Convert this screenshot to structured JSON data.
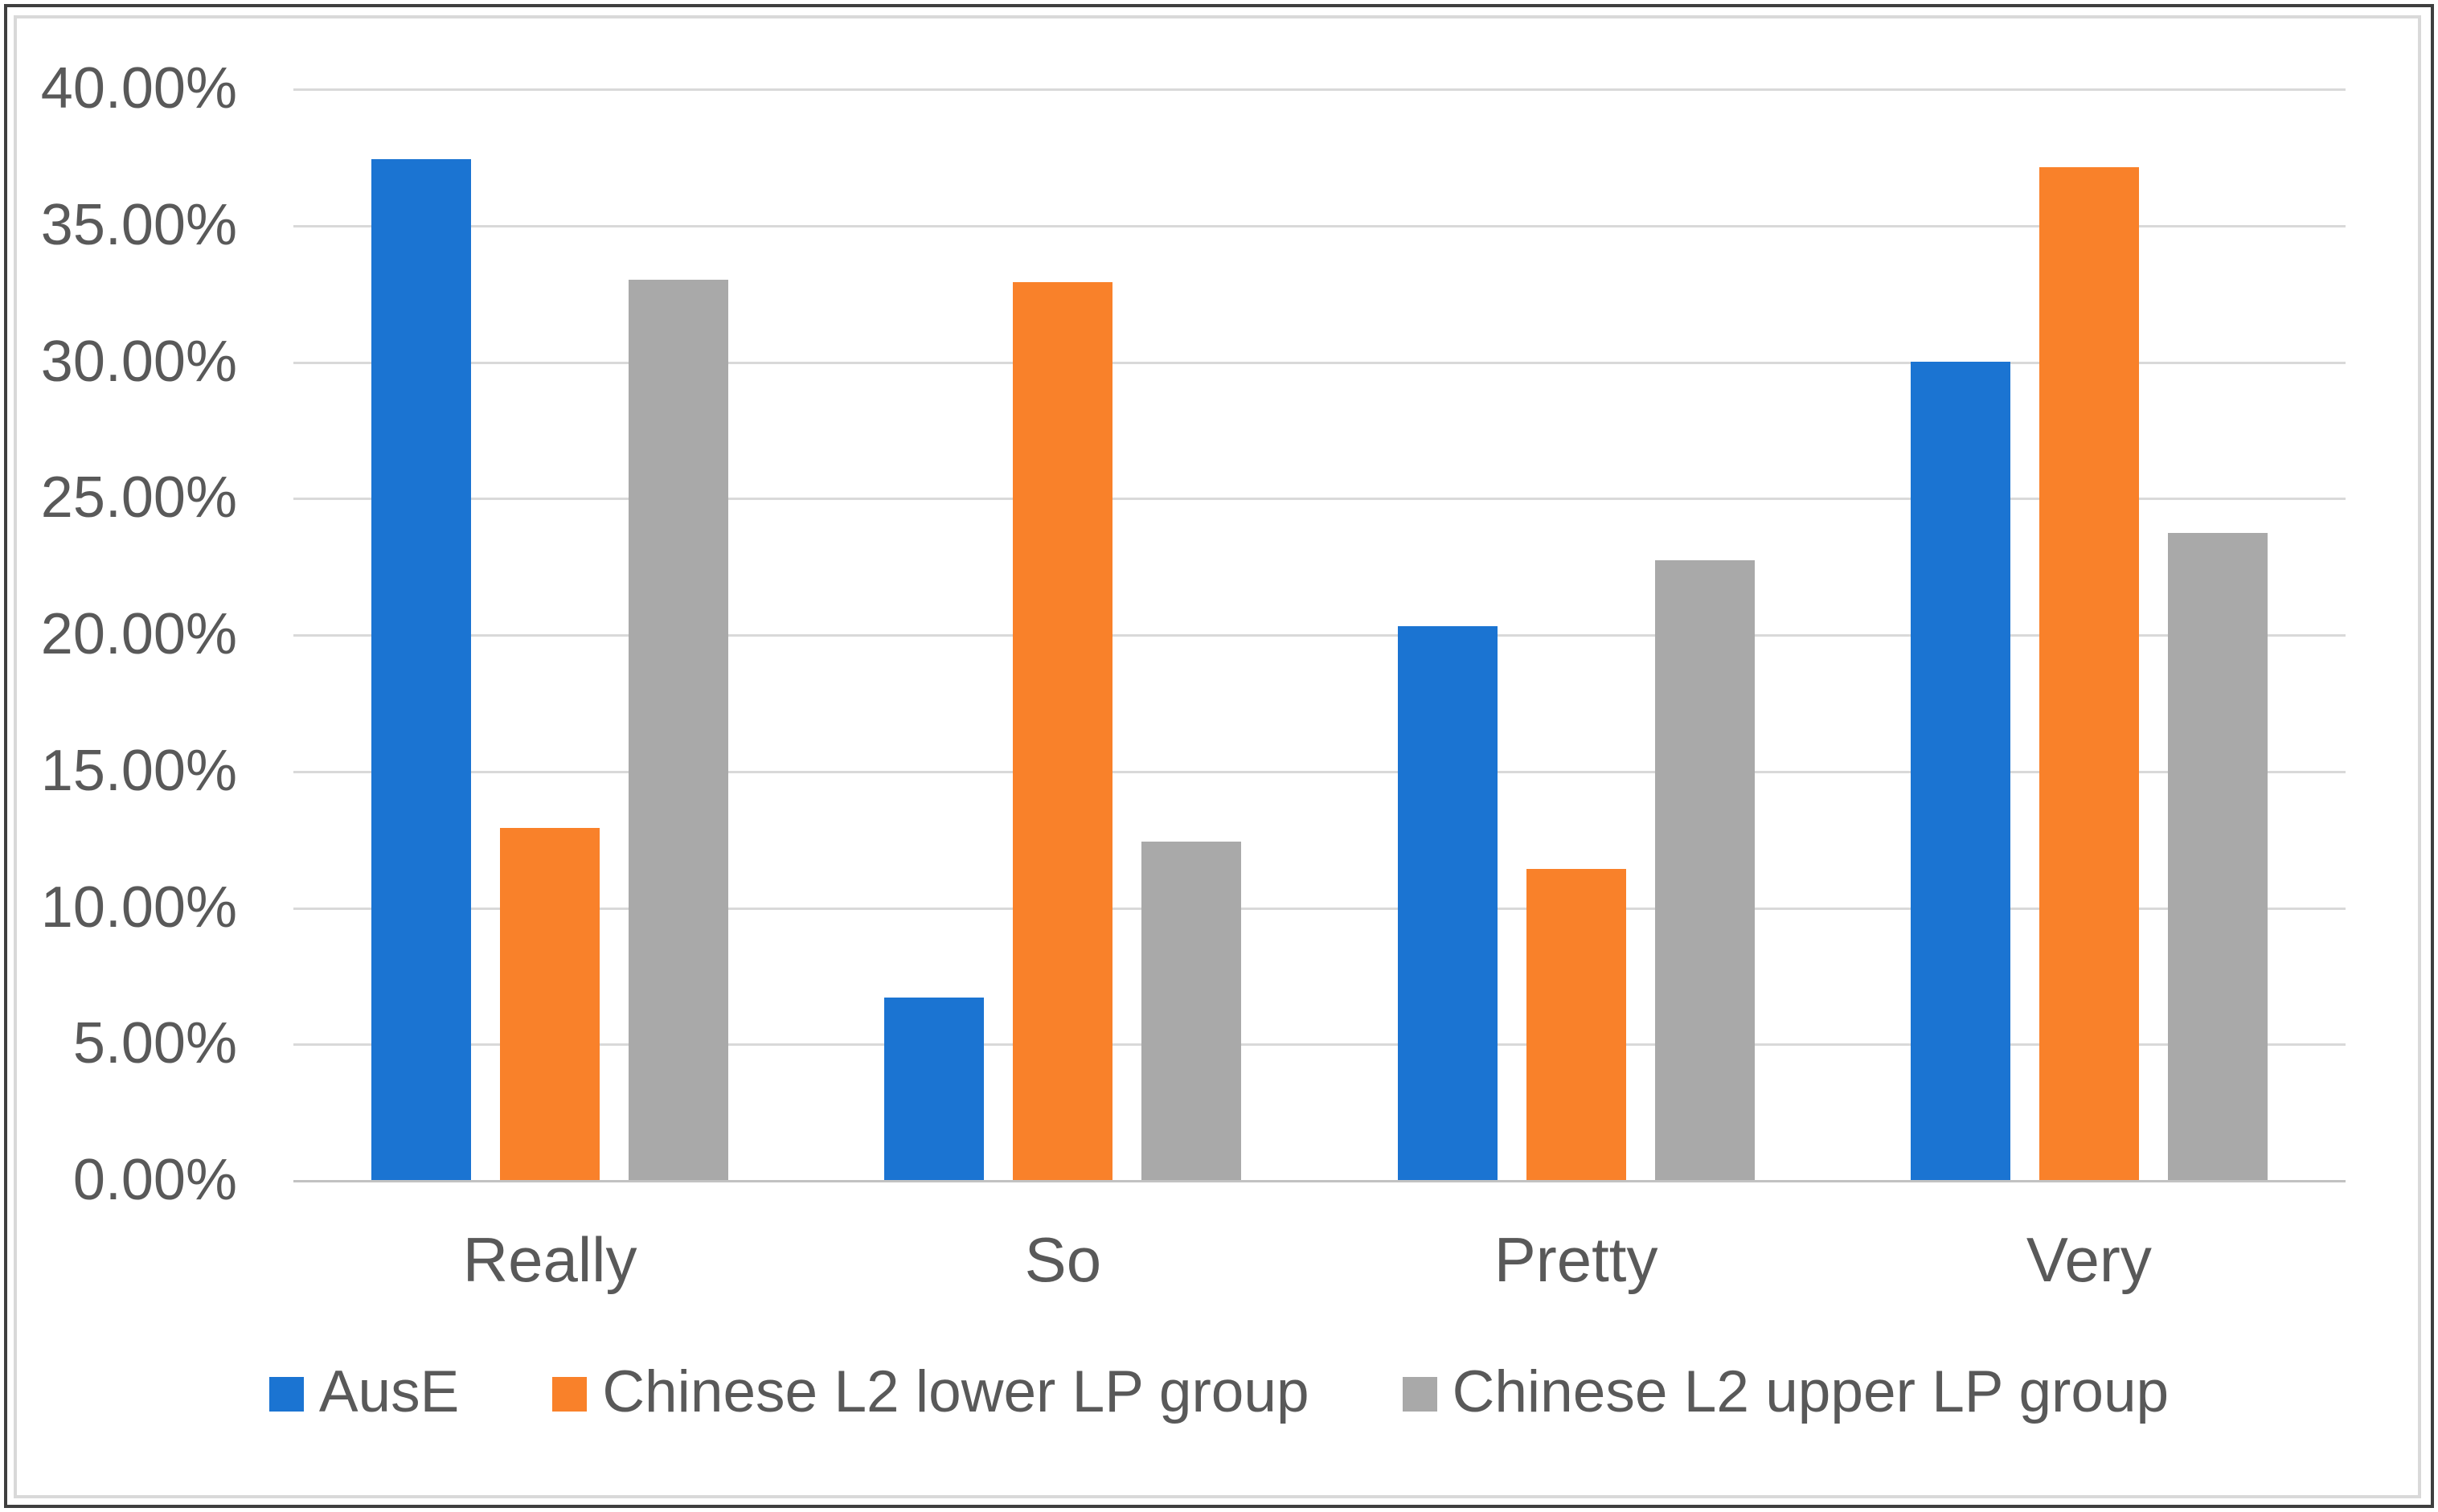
{
  "chart_data": {
    "type": "bar",
    "title": "",
    "xlabel": "",
    "ylabel": "",
    "categories": [
      "Really",
      "So",
      "Pretty",
      "Very"
    ],
    "series": [
      {
        "name": "AusE",
        "color": "#1b74d2",
        "values": [
          37.4,
          6.7,
          20.3,
          30.0
        ]
      },
      {
        "name": "Chinese L2 lower LP group",
        "color": "#f9812a",
        "values": [
          12.9,
          32.9,
          11.4,
          37.1
        ]
      },
      {
        "name": "Chinese L2 upper LP group",
        "color": "#a9a9a9",
        "values": [
          33.0,
          12.4,
          22.7,
          23.7
        ]
      }
    ],
    "ylim": [
      0,
      40
    ],
    "ytick_step": 5,
    "ytick_labels": [
      "40.00%",
      "35.00%",
      "30.00%",
      "25.00%",
      "20.00%",
      "15.00%",
      "10.00%",
      "5.00%",
      "0.00%"
    ],
    "grid": true,
    "legend_position": "bottom"
  },
  "colors": {
    "gridline": "#d9d9d9",
    "axis_baseline": "#c2c2c2",
    "tick_text": "#595959",
    "chart_border": "#d9d9d9",
    "outer_frame": "#3f3f3f",
    "background": "#ffffff"
  }
}
